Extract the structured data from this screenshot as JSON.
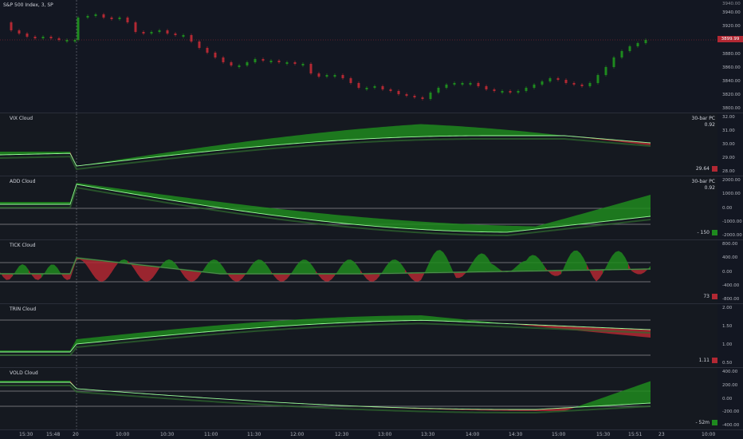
{
  "title": "S&P 500 Index, 3, SP",
  "price_pane": {
    "ticks": [
      "3940.00",
      "3920.00",
      "3900.00",
      "3880.00",
      "3860.00",
      "3840.00",
      "3820.00",
      "3800.00"
    ],
    "badge": "3899.99"
  },
  "panes": [
    {
      "name": "VIX Cloud",
      "info1": "30-bar PC",
      "info2": "0.92",
      "ticks": [
        "32.00",
        "31.00",
        "30.00",
        "29.00",
        "28.00"
      ],
      "value": "29.64",
      "value_color": "#b22833"
    },
    {
      "name": "ADD Cloud",
      "info1": "30-bar PC",
      "info2": "0.92",
      "ticks": [
        "2000.00",
        "1000.00",
        "0.00",
        "-1000.00",
        "-2000.00"
      ],
      "value": "- 150",
      "value_color": "#1e8a1e"
    },
    {
      "name": "TICK Cloud",
      "info1": "",
      "info2": "",
      "ticks": [
        "800.00",
        "400.00",
        "0.00",
        "-400.00",
        "-800.00"
      ],
      "value": "73",
      "value_color": "#b22833"
    },
    {
      "name": "TRIN Cloud",
      "info1": "",
      "info2": "",
      "ticks": [
        "2.00",
        "1.50",
        "1.00",
        "0.50"
      ],
      "value": "1.11",
      "value_color": "#b22833"
    },
    {
      "name": "VOLD Cloud",
      "info1": "",
      "info2": "",
      "ticks": [
        "400.00",
        "200.00",
        "0.00",
        "-200.00",
        "-400.00"
      ],
      "value": "- 52m",
      "value_color": "#1e8a1e"
    }
  ],
  "time_axis": [
    "15:30",
    "15:48",
    "20",
    "10:00",
    "10:30",
    "11:00",
    "11:30",
    "12:00",
    "12:30",
    "13:00",
    "13:30",
    "14:00",
    "14:30",
    "15:00",
    "15:30",
    "15:51",
    "23",
    "10:00"
  ],
  "colors": {
    "up": "#1e8a1e",
    "down": "#b22833",
    "bg": "#131722",
    "line_up": "#5cff5c",
    "line_down": "#ff4040"
  }
}
